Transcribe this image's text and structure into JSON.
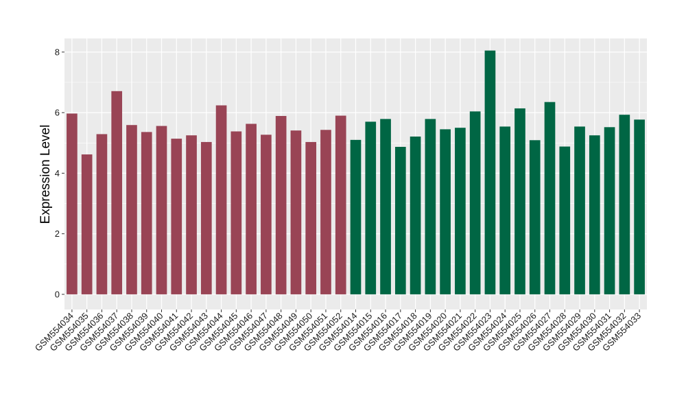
{
  "chart_data": {
    "type": "bar",
    "title": "",
    "xlabel": "",
    "ylabel": "Expression Level",
    "ylim": [
      -0.5,
      8.45
    ],
    "yticks": [
      0,
      2,
      4,
      6,
      8
    ],
    "grid": true,
    "legend": "none",
    "background_color": "#ebebeb",
    "grid_color": "#ffffff",
    "group_colors": [
      "#994455",
      "#006644"
    ],
    "categories": [
      "GSM554034",
      "GSM554035",
      "GSM554036",
      "GSM554037",
      "GSM554038",
      "GSM554039",
      "GSM554040",
      "GSM554041",
      "GSM554042",
      "GSM554043",
      "GSM554044",
      "GSM554045",
      "GSM554046",
      "GSM554047",
      "GSM554048",
      "GSM554049",
      "GSM554050",
      "GSM554051",
      "GSM554052",
      "GSM554014",
      "GSM554015",
      "GSM554016",
      "GSM554017",
      "GSM554018",
      "GSM554019",
      "GSM554020",
      "GSM554021",
      "GSM554022",
      "GSM554023",
      "GSM554024",
      "GSM554025",
      "GSM554026",
      "GSM554027",
      "GSM554028",
      "GSM554029",
      "GSM554030",
      "GSM554031",
      "GSM554032",
      "GSM554033"
    ],
    "values": [
      5.97,
      4.62,
      5.29,
      6.71,
      5.59,
      5.36,
      5.56,
      5.14,
      5.25,
      5.03,
      6.24,
      5.38,
      5.63,
      5.27,
      5.89,
      5.41,
      5.03,
      5.43,
      5.9,
      5.1,
      5.7,
      5.79,
      4.87,
      5.21,
      5.79,
      5.45,
      5.5,
      6.04,
      8.05,
      5.54,
      6.14,
      5.09,
      6.35,
      4.88,
      5.54,
      5.25,
      5.52,
      5.93,
      5.77
    ],
    "groups": [
      0,
      0,
      0,
      0,
      0,
      0,
      0,
      0,
      0,
      0,
      0,
      0,
      0,
      0,
      0,
      0,
      0,
      0,
      0,
      1,
      1,
      1,
      1,
      1,
      1,
      1,
      1,
      1,
      1,
      1,
      1,
      1,
      1,
      1,
      1,
      1,
      1,
      1,
      1
    ]
  }
}
